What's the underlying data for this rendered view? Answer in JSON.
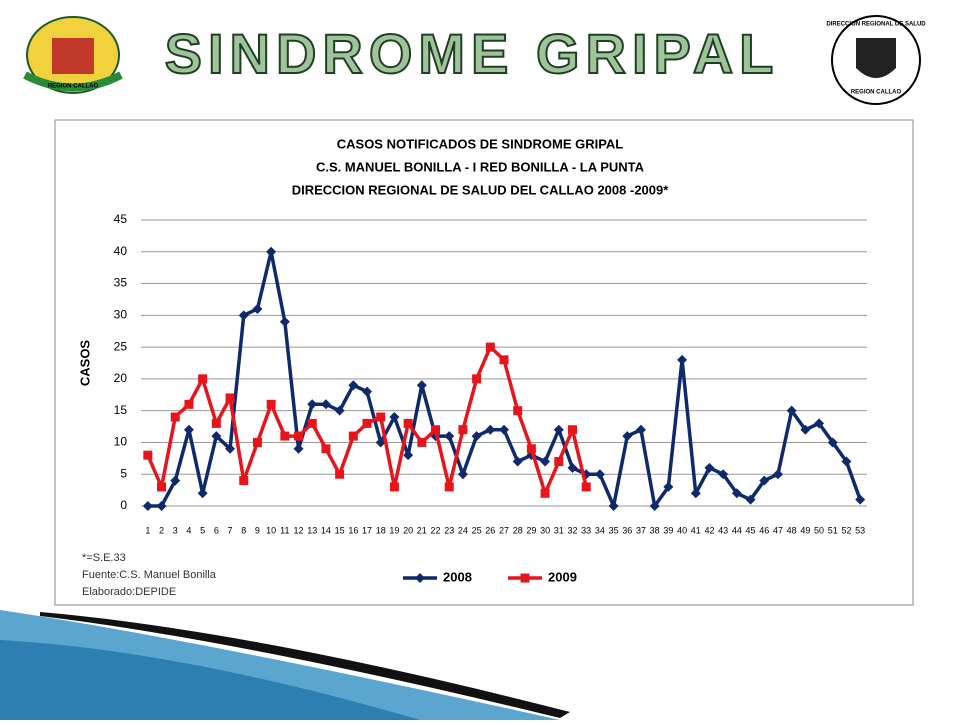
{
  "header": {
    "title": "SINDROME GRIPAL",
    "left_logo": "REGION CALLAO",
    "right_logo_top": "DIRECCION REGIONAL DE SALUD",
    "right_logo_bottom": "REGION CALLAO"
  },
  "chart_data": {
    "type": "line",
    "title": [
      "CASOS NOTIFICADOS DE SINDROME GRIPAL",
      "C.S. MANUEL BONILLA  - I RED BONILLA - LA PUNTA",
      "DIRECCION REGIONAL DE SALUD  DEL CALLAO  2008 -2009*"
    ],
    "y_label": "CASOS",
    "notes": [
      "*=S.E.33",
      "Fuente:C.S. Manuel Bonilla",
      "Elaborado:DEPIDE"
    ],
    "categories": [
      1,
      2,
      3,
      4,
      5,
      6,
      7,
      8,
      9,
      10,
      11,
      12,
      13,
      14,
      15,
      16,
      17,
      18,
      19,
      20,
      21,
      22,
      23,
      24,
      25,
      26,
      27,
      28,
      29,
      30,
      31,
      32,
      33,
      34,
      35,
      36,
      37,
      38,
      39,
      40,
      41,
      42,
      43,
      44,
      45,
      46,
      47,
      48,
      49,
      50,
      51,
      52,
      53
    ],
    "series": [
      {
        "name": "2008",
        "color": "#0f2a6b",
        "marker": "diamond",
        "values": [
          0,
          0,
          4,
          12,
          2,
          11,
          9,
          30,
          31,
          40,
          29,
          9,
          16,
          16,
          15,
          19,
          18,
          10,
          14,
          8,
          19,
          11,
          11,
          5,
          11,
          12,
          12,
          7,
          8,
          7,
          12,
          6,
          5,
          5,
          0,
          11,
          12,
          0,
          3,
          23,
          2,
          6,
          5,
          2,
          1,
          4,
          5,
          15,
          12,
          13,
          10,
          7,
          1
        ]
      },
      {
        "name": "2009",
        "color": "#e8141b",
        "marker": "square",
        "values": [
          8,
          3,
          14,
          16,
          20,
          13,
          17,
          4,
          10,
          16,
          11,
          11,
          13,
          9,
          5,
          11,
          13,
          14,
          3,
          13,
          10,
          12,
          3,
          12,
          20,
          25,
          23,
          15,
          9,
          2,
          7,
          12,
          3,
          null,
          null,
          null,
          null,
          null,
          null,
          null,
          null,
          null,
          null,
          null,
          null,
          null,
          null,
          null,
          null,
          null,
          null,
          null,
          null
        ]
      }
    ],
    "ylim": [
      0,
      45
    ],
    "yticks": [
      0,
      5,
      10,
      15,
      20,
      25,
      30,
      35,
      40,
      45
    ],
    "grid": true,
    "legend": "bottom"
  }
}
